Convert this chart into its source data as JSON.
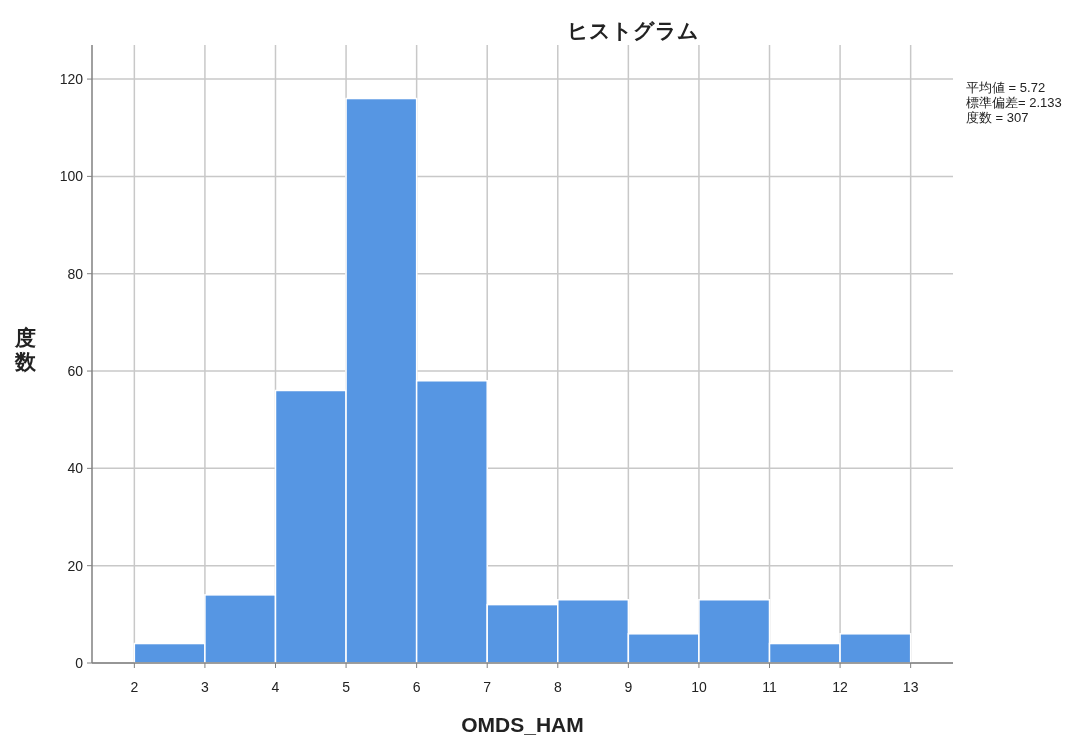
{
  "chart_data": {
    "type": "histogram",
    "title": "ヒストグラム",
    "xlabel": "OMDS_HAM",
    "ylabel": "度数",
    "bins": [
      2,
      3,
      4,
      5,
      6,
      7,
      8,
      9,
      10,
      11,
      12,
      13
    ],
    "values": [
      4,
      14,
      56,
      116,
      58,
      12,
      13,
      6,
      13,
      4,
      6
    ],
    "color": "#5696e3",
    "xlim": [
      1.4,
      13.6
    ],
    "ylim": [
      0,
      127
    ],
    "xticks": [
      2,
      3,
      4,
      5,
      6,
      7,
      8,
      9,
      10,
      11,
      12,
      13
    ],
    "yticks": [
      0,
      20,
      40,
      60,
      80,
      100,
      120
    ],
    "grid": true,
    "annotations": [
      "平均値 = 5.72",
      "標準偏差= 2.133",
      "度数 = 307"
    ]
  }
}
